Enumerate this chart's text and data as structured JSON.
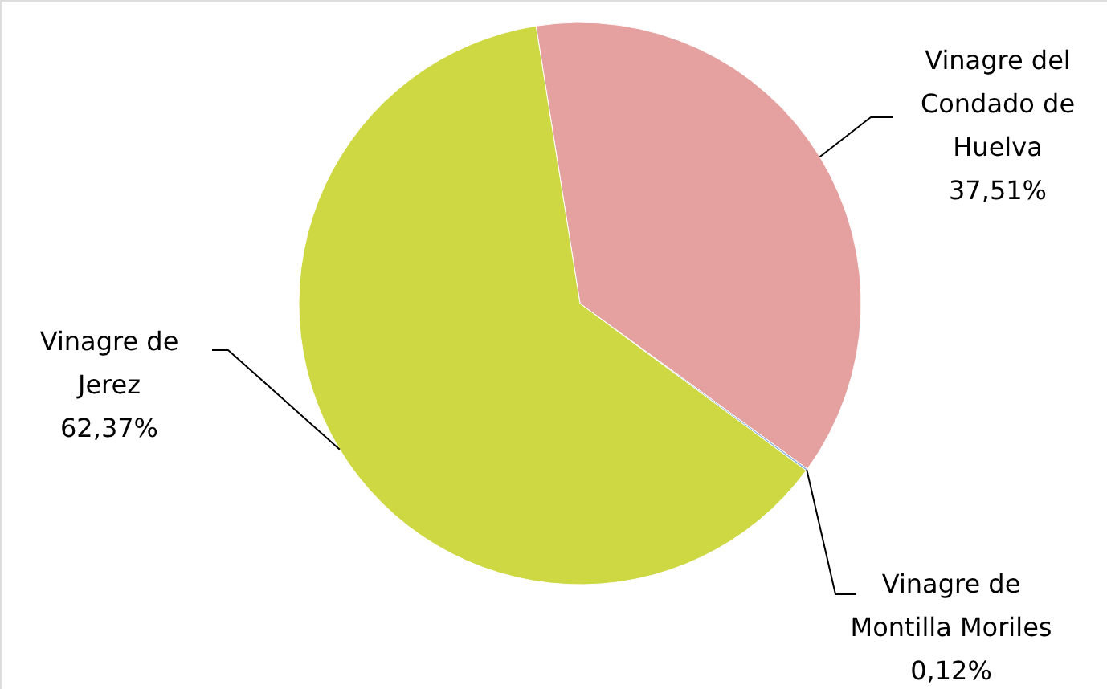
{
  "chart_data": {
    "type": "pie",
    "categories": [
      "Vinagre del Condado de Huelva",
      "Vinagre de Montilla Moriles",
      "Vinagre de Jerez"
    ],
    "values": [
      37.51,
      0.12,
      62.37
    ],
    "value_labels": [
      "37,51%",
      "0,12%",
      "62,37%"
    ],
    "colors": [
      "#e5a0a0",
      "#8eb4e3",
      "#cdd843"
    ]
  }
}
